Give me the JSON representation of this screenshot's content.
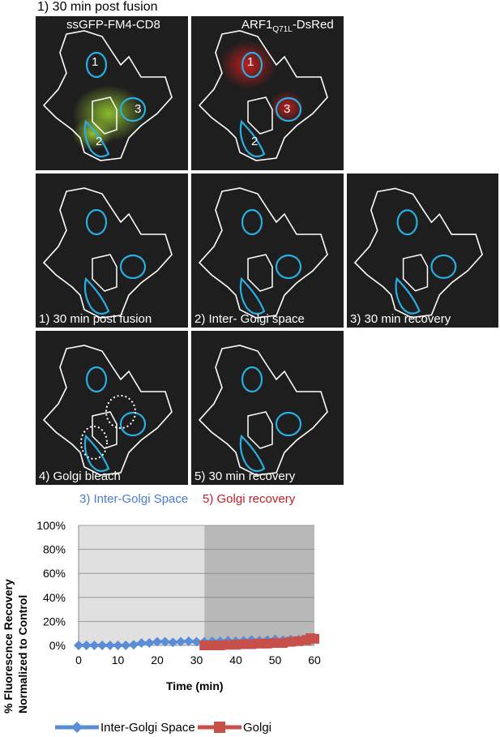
{
  "figure": {
    "top_label": "1) 30 min post fusion",
    "panels": [
      {
        "id": "gfp",
        "label": "ssGFP-FM4-CD8",
        "region_numbers": [
          "1",
          "2",
          "3"
        ]
      },
      {
        "id": "arf",
        "label_main": "ARF1",
        "label_sub": "Q71L",
        "label_suffix": "-DsRed",
        "region_numbers": [
          "1",
          "2",
          "3"
        ]
      },
      {
        "id": "p1",
        "caption": "1) 30 min post fusion"
      },
      {
        "id": "p2",
        "caption": "2) Inter- Golgi space"
      },
      {
        "id": "p3",
        "caption": "3) 30 min recovery"
      },
      {
        "id": "p4",
        "caption": "4) Golgi bleach"
      },
      {
        "id": "p5",
        "caption": "5) 30 min recovery"
      }
    ],
    "colors": {
      "roi": "#29aee3",
      "outline": "#ffffff",
      "gfp": "#9acd32",
      "dsred": "#d21e1e",
      "panel_bg": "#1e1e1e"
    }
  },
  "chart_top_labels": {
    "left": "3) Inter-Golgi Space",
    "right": "5) Golgi recovery",
    "left_color": "#4a7bd0",
    "right_color": "#c0202a"
  },
  "chart_data": {
    "type": "line",
    "ylabel_line1": "% Fluorescnce Recovery",
    "ylabel_line2": "Normalized to Control",
    "xlabel": "Time (min)",
    "xlim": [
      0,
      60
    ],
    "ylim": [
      0,
      100
    ],
    "xticks": [
      "0",
      "10",
      "20",
      "30",
      "40",
      "50",
      "60"
    ],
    "yticks": [
      "0%",
      "20%",
      "40%",
      "60%",
      "80%",
      "100%"
    ],
    "shaded_regions": [
      {
        "from": 0,
        "to": 32,
        "color": "#e0e0e0"
      },
      {
        "from": 32,
        "to": 60,
        "color": "#b8b8b8"
      }
    ],
    "series": [
      {
        "name": "Inter-Golgi Space",
        "color": "#5b8dd6",
        "marker": "diamond",
        "x": [
          0,
          2,
          4,
          6,
          8,
          10,
          12,
          14,
          16,
          18,
          20,
          22,
          24,
          26,
          28,
          30,
          32,
          34,
          36,
          38,
          40,
          42,
          44,
          46,
          48,
          50,
          52,
          54,
          56,
          58,
          60
        ],
        "y": [
          0,
          0,
          0,
          0,
          0,
          0,
          0,
          0.5,
          2,
          2,
          3,
          3,
          2.5,
          3,
          3.5,
          3,
          3,
          3.5,
          3.5,
          4,
          3.5,
          4,
          4.5,
          4,
          4.5,
          5,
          4.5,
          5,
          5,
          5.5,
          6
        ]
      },
      {
        "name": "Golgi",
        "color": "#c8504a",
        "marker": "square",
        "x": [
          32,
          34,
          36,
          38,
          40,
          42,
          44,
          46,
          48,
          50,
          52,
          54,
          56,
          58,
          59,
          60
        ],
        "y": [
          0,
          0,
          0,
          0.5,
          0.5,
          1,
          1,
          1.5,
          1.5,
          2,
          2,
          3,
          3.5,
          4.5,
          6,
          5.5
        ]
      }
    ],
    "legend_position": "bottom"
  }
}
